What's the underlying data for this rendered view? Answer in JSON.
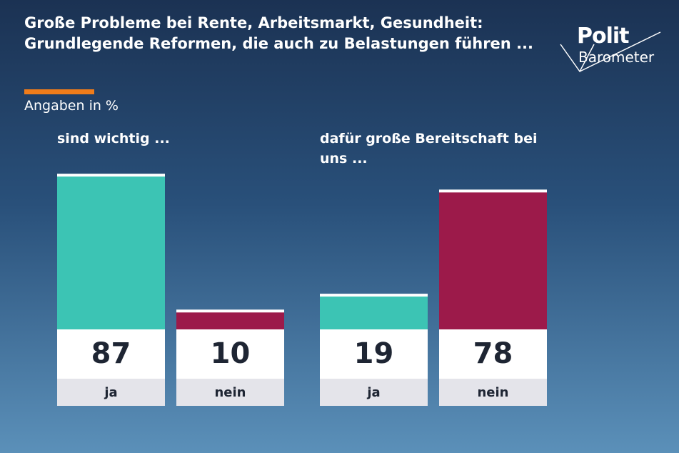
{
  "header": {
    "title": "Große Probleme bei Rente, Arbeitsmarkt, Gesundheit: Grundlegende Reformen, die auch zu Belastungen führen ...",
    "subtitle": "Angaben in %"
  },
  "logo": {
    "line1": "Polit",
    "line2": "Barometer"
  },
  "chart_data": [
    {
      "type": "bar",
      "title": "sind wichtig ...",
      "categories": [
        "ja",
        "nein"
      ],
      "values": [
        87,
        10
      ],
      "colors": [
        "#3cc4b4",
        "#9c1a4a"
      ]
    },
    {
      "type": "bar",
      "title": "dafür große Bereitschaft bei uns ...",
      "categories": [
        "ja",
        "nein"
      ],
      "values": [
        19,
        78
      ],
      "colors": [
        "#3cc4b4",
        "#9c1a4a"
      ]
    }
  ]
}
